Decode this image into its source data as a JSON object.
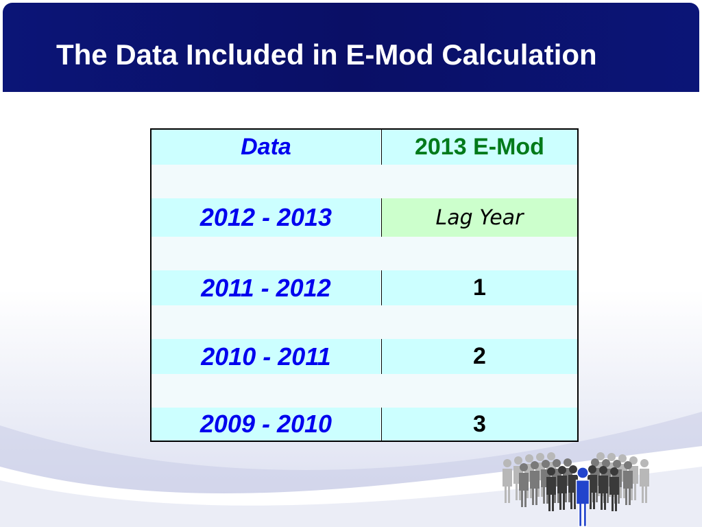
{
  "title": "The Data Included in E-Mod Calculation",
  "table": {
    "headers": [
      "Data",
      "2013 E-Mod"
    ],
    "rows": [
      {
        "data": "2012 - 2013",
        "emod": "Lag Year"
      },
      {
        "data": "2011 - 2012",
        "emod": "1"
      },
      {
        "data": "2010 - 2011",
        "emod": "2"
      },
      {
        "data": "2009 - 2010",
        "emod": "3"
      }
    ]
  },
  "colors": {
    "header_bar": "#0a0f66",
    "header_text": "#ffffff",
    "year_text": "#0000ee",
    "emod_header_text": "#007a1a",
    "cyan_band": "#ccffff",
    "green_band": "#ccffcc",
    "highlight_person": "#2244cc"
  },
  "icons": [
    "crowd-of-people-icon"
  ]
}
